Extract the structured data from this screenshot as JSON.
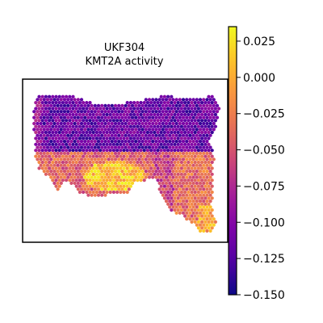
{
  "chart_data": {
    "type": "heatmap",
    "title": "UKF304",
    "subtitle": "KMT2A activity",
    "xlabel": "",
    "ylabel": "",
    "grid": false,
    "colorbar": {
      "colormap": "plasma",
      "vmin": -0.15,
      "vmax": 0.035,
      "ticks": [
        0.025,
        0.0,
        -0.025,
        -0.05,
        -0.075,
        -0.1,
        -0.125,
        -0.15
      ],
      "tick_labels": [
        "0.025",
        "0.000",
        "−0.025",
        "−0.050",
        "−0.075",
        "−0.100",
        "−0.125",
        "−0.150"
      ]
    },
    "regions": [
      {
        "id": "upper-band",
        "value": -0.115
      },
      {
        "id": "upper-left-edge",
        "value": -0.09
      },
      {
        "id": "lower-left-lobe-core",
        "value": 0.01
      },
      {
        "id": "lower-left-lobe-rim",
        "value": -0.04
      },
      {
        "id": "middle-bridge",
        "value": -0.06
      },
      {
        "id": "right-lower-arm",
        "value": -0.035
      },
      {
        "id": "right-lower-arm-edge",
        "value": -0.005
      }
    ]
  }
}
